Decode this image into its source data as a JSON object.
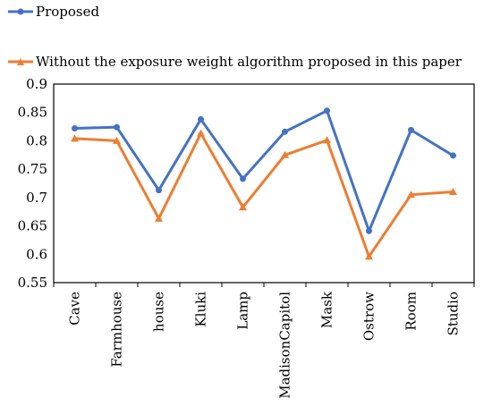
{
  "chart_data": {
    "type": "line",
    "categories": [
      "Cave",
      "Farmhouse",
      "house",
      "Kluki",
      "Lamp",
      "MadisonCapitol",
      "Mask",
      "Ostrow",
      "Room",
      "Studio"
    ],
    "series": [
      {
        "name": "Proposed",
        "color": "#4472C4",
        "marker": "circle",
        "values": [
          0.822,
          0.824,
          0.713,
          0.838,
          0.733,
          0.816,
          0.853,
          0.641,
          0.819,
          0.774
        ]
      },
      {
        "name": "Without the exposure weight algorithm proposed in this paper",
        "color": "#ED7D31",
        "marker": "triangle",
        "values": [
          0.804,
          0.8,
          0.663,
          0.813,
          0.683,
          0.775,
          0.801,
          0.596,
          0.705,
          0.71
        ]
      }
    ],
    "ylim": [
      0.55,
      0.9
    ],
    "yticks": [
      "0.55",
      "0.6",
      "0.65",
      "0.7",
      "0.75",
      "0.8",
      "0.85",
      "0.9"
    ],
    "grid": false,
    "legend_position": "top-left"
  }
}
